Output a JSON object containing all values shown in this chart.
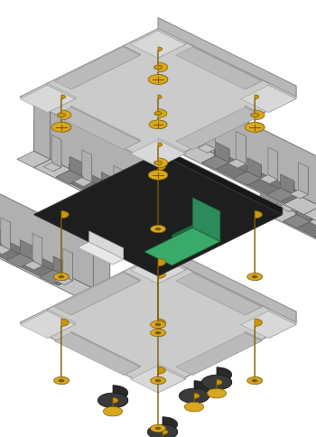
{
  "bg_color": "#ffffff",
  "plate_top": "#cbcbcb",
  "plate_left": "#a8a8a8",
  "plate_right": "#b8b8b8",
  "plate_edge": "#888888",
  "standoff_body": "#c8960c",
  "standoff_top": "#daa820",
  "standoff_dark": "#7a5c00",
  "screw_body": "#c8960c",
  "screw_top": "#daa820",
  "screw_dark": "#7a5c00",
  "rubber_body": "#2a2a2a",
  "rubber_top": "#3a3a3a",
  "pcb_top": "#1e1e1e",
  "pcb_left": "#111111",
  "pcb_right": "#181818",
  "pcb_edge": "#333333",
  "green_top": "#3aaa6a",
  "green_left": "#1d6a3a",
  "green_right": "#2d8a5a",
  "green_edge": "#1a5a30",
  "white_comp": "#e0e0e0",
  "conn_top": "#c2c2c2",
  "conn_left": "#909090",
  "conn_right": "#b0b0b0",
  "conn_edge": "#666666",
  "conn_slot": "#787878",
  "SX": 0.85,
  "SY": 0.42,
  "SZ": 0.85
}
